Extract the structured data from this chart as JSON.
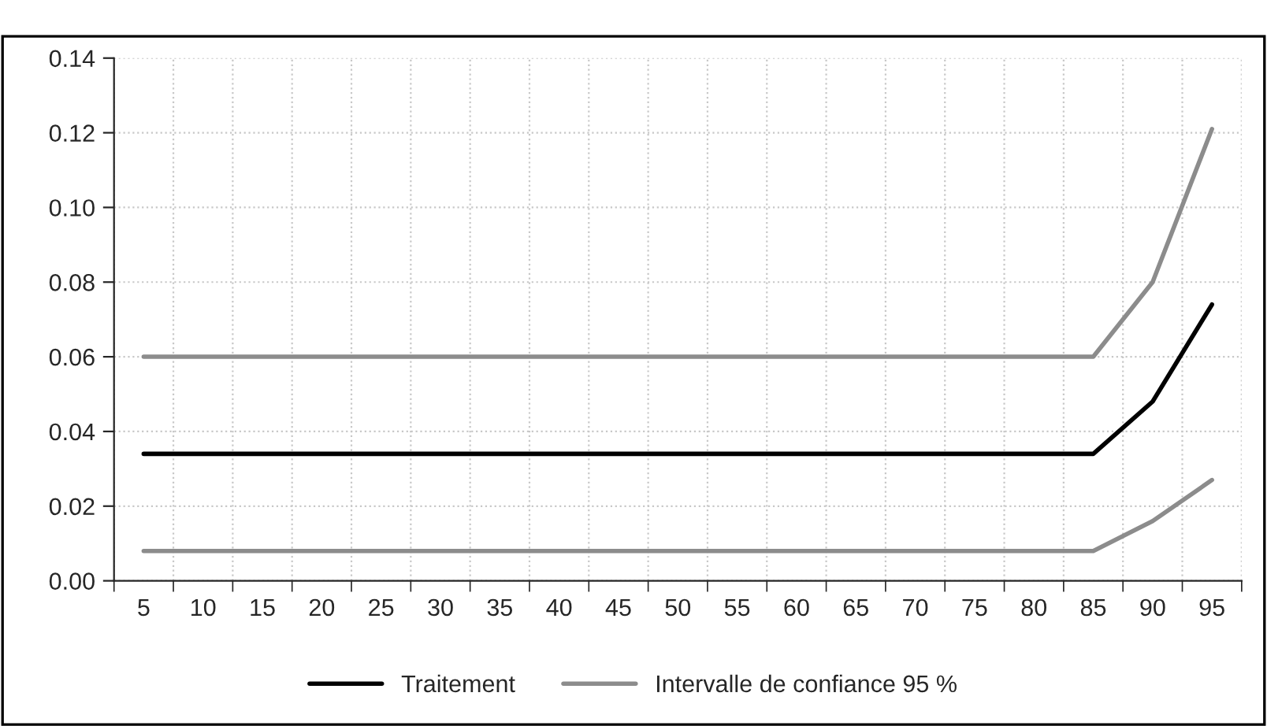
{
  "chart_data": {
    "type": "line",
    "categories": [
      "5",
      "10",
      "15",
      "20",
      "25",
      "30",
      "35",
      "40",
      "45",
      "50",
      "55",
      "60",
      "65",
      "70",
      "75",
      "80",
      "85",
      "90",
      "95"
    ],
    "series": [
      {
        "name": "Traitement",
        "color": "#000000",
        "values": [
          0.034,
          0.034,
          0.034,
          0.034,
          0.034,
          0.034,
          0.034,
          0.034,
          0.034,
          0.034,
          0.034,
          0.034,
          0.034,
          0.034,
          0.034,
          0.034,
          0.034,
          0.048,
          0.074
        ]
      },
      {
        "name": "Intervalle de confiance 95 %",
        "color": "#8c8c8c",
        "values": [
          0.06,
          0.06,
          0.06,
          0.06,
          0.06,
          0.06,
          0.06,
          0.06,
          0.06,
          0.06,
          0.06,
          0.06,
          0.06,
          0.06,
          0.06,
          0.06,
          0.06,
          0.08,
          0.121
        ]
      },
      {
        "color": "#8c8c8c",
        "values": [
          0.008,
          0.008,
          0.008,
          0.008,
          0.008,
          0.008,
          0.008,
          0.008,
          0.008,
          0.008,
          0.008,
          0.008,
          0.008,
          0.008,
          0.008,
          0.008,
          0.008,
          0.016,
          0.027
        ]
      }
    ],
    "ylim": [
      0,
      0.14
    ],
    "yticks": [
      {
        "value": 0,
        "label": "0.00"
      },
      {
        "value": 0.02,
        "label": "0.02"
      },
      {
        "value": 0.04,
        "label": "0.04"
      },
      {
        "value": 0.06,
        "label": "0.06"
      },
      {
        "value": 0.08,
        "label": "0.08"
      },
      {
        "value": 0.1,
        "label": "0.10"
      },
      {
        "value": 0.12,
        "label": "0.12"
      },
      {
        "value": 0.14,
        "label": "0.14"
      }
    ],
    "grid": true,
    "legend": "bottom",
    "marker": "none",
    "line_style": "solid"
  }
}
